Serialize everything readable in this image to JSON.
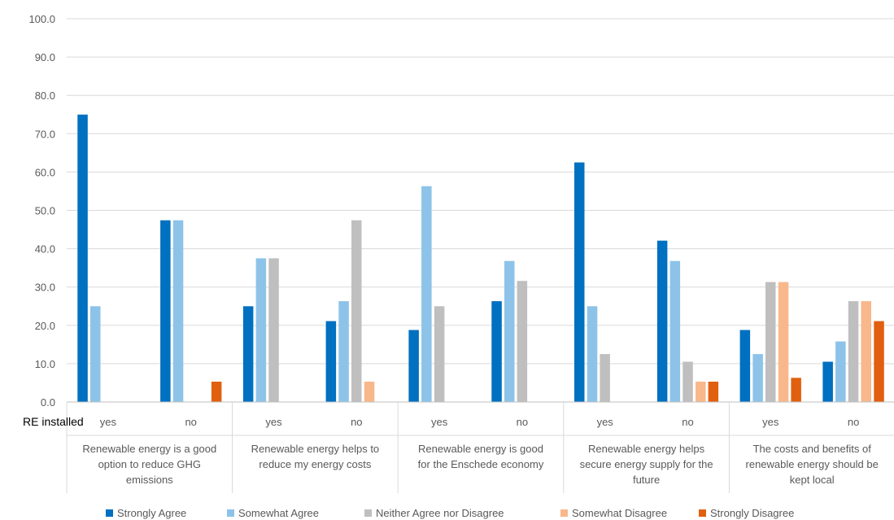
{
  "chart_data": {
    "type": "bar",
    "ylim": [
      0,
      100
    ],
    "yticks": [
      "0.0",
      "10.0",
      "20.0",
      "30.0",
      "40.0",
      "50.0",
      "60.0",
      "70.0",
      "80.0",
      "90.0",
      "100.0"
    ],
    "grid": true,
    "legend_position": "bottom",
    "row_header": "RE installed",
    "groups": [
      "Renewable energy is a good option to reduce GHG emissions",
      "Renewable energy helps to reduce my energy costs",
      "Renewable energy is good for the Enschede economy",
      "Renewable energy helps secure energy supply for the future",
      "The costs and benefits of renewable energy should be kept local"
    ],
    "group_label_lines": [
      [
        "Renewable energy is a good",
        "option to reduce GHG",
        "emissions"
      ],
      [
        "Renewable energy helps to",
        "reduce my energy costs"
      ],
      [
        "Renewable energy is good",
        "for the Enschede economy"
      ],
      [
        "Renewable energy helps",
        "secure energy supply for the",
        "future"
      ],
      [
        "The costs and benefits of",
        "renewable energy should be",
        "kept local"
      ]
    ],
    "categories": [
      "yes",
      "no",
      "yes",
      "no",
      "yes",
      "no",
      "yes",
      "no",
      "yes",
      "no"
    ],
    "series": [
      {
        "name": "Strongly Agree",
        "color": "#0070C0",
        "values": [
          75.0,
          47.4,
          25.0,
          21.1,
          18.8,
          26.3,
          62.5,
          42.1,
          18.8,
          10.5
        ]
      },
      {
        "name": "Somewhat Agree",
        "color": "#8DC3E8",
        "values": [
          25.0,
          47.4,
          37.5,
          26.3,
          56.3,
          36.8,
          25.0,
          36.8,
          12.5,
          15.8
        ]
      },
      {
        "name": "Neither Agree nor Disagree",
        "color": "#BFBFBF",
        "values": [
          0,
          0,
          37.5,
          47.4,
          25.0,
          31.6,
          12.5,
          10.5,
          31.3,
          26.3
        ]
      },
      {
        "name": "Somewhat Disagree",
        "color": "#F8B88B",
        "values": [
          0,
          0,
          0,
          5.3,
          0,
          0,
          0,
          5.3,
          31.3,
          26.3
        ]
      },
      {
        "name": "Strongly Disagree",
        "color": "#E06010",
        "values": [
          0,
          5.3,
          0,
          0,
          0,
          0,
          0,
          5.3,
          6.3,
          21.1
        ]
      }
    ]
  }
}
